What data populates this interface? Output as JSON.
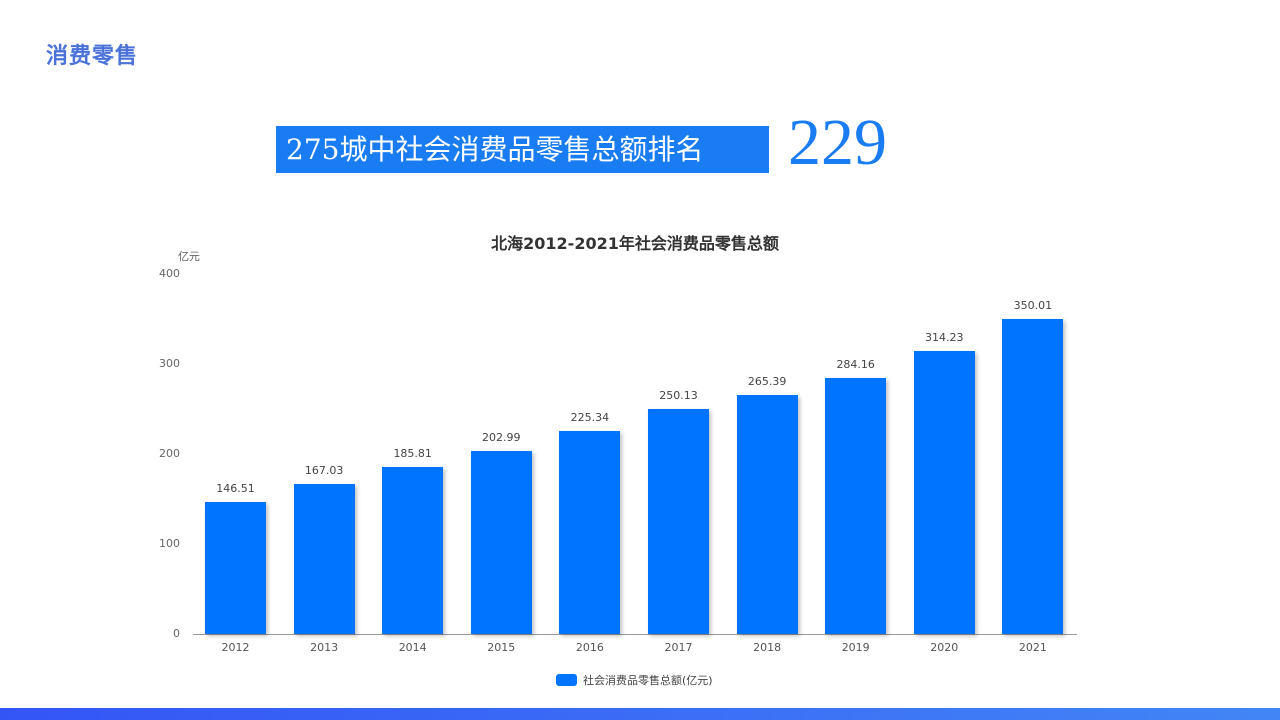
{
  "page": {
    "section_title": "消费零售",
    "rank_label": "275城中社会消费品零售总额排名",
    "rank_value": "229"
  },
  "colors": {
    "accent": "#1a7cf2",
    "bar": "#0073ff",
    "section_title": "#4a72d8",
    "bottom_bar_start": "#3355f5",
    "bottom_bar_end": "#4286f6"
  },
  "chart": {
    "title": "北海2012-2021年社会消费品零售总额",
    "y_unit": "亿元",
    "y_ticks": [
      "0",
      "100",
      "200",
      "300",
      "400"
    ],
    "legend_label": "社会消费品零售总额(亿元)",
    "bars": [
      {
        "year": "2012",
        "value": "146.51"
      },
      {
        "year": "2013",
        "value": "167.03"
      },
      {
        "year": "2014",
        "value": "185.81"
      },
      {
        "year": "2015",
        "value": "202.99"
      },
      {
        "year": "2016",
        "value": "225.34"
      },
      {
        "year": "2017",
        "value": "250.13"
      },
      {
        "year": "2018",
        "value": "265.39"
      },
      {
        "year": "2019",
        "value": "284.16"
      },
      {
        "year": "2020",
        "value": "314.23"
      },
      {
        "year": "2021",
        "value": "350.01"
      }
    ]
  },
  "chart_data": {
    "type": "bar",
    "title": "北海2012-2021年社会消费品零售总额",
    "categories": [
      "2012",
      "2013",
      "2014",
      "2015",
      "2016",
      "2017",
      "2018",
      "2019",
      "2020",
      "2021"
    ],
    "values": [
      146.51,
      167.03,
      185.81,
      202.99,
      225.34,
      250.13,
      265.39,
      284.16,
      314.23,
      350.01
    ],
    "series": [
      {
        "name": "社会消费品零售总额(亿元)",
        "values": [
          146.51,
          167.03,
          185.81,
          202.99,
          225.34,
          250.13,
          265.39,
          284.16,
          314.23,
          350.01
        ]
      }
    ],
    "xlabel": "",
    "ylabel": "亿元",
    "ylim": [
      0,
      400
    ],
    "yticks": [
      0,
      100,
      200,
      300,
      400
    ],
    "grid": false,
    "legend_position": "bottom",
    "data_labels": true
  }
}
